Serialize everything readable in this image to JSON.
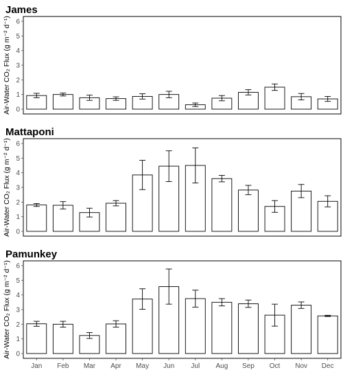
{
  "chart_data": {
    "type": "bar",
    "categories": [
      "Jan",
      "Feb",
      "Mar",
      "Apr",
      "May",
      "Jun",
      "Jul",
      "Aug",
      "Sep",
      "Oct",
      "Nov",
      "Dec"
    ],
    "ylabel": "Air-Water CO₂ Flux (g m⁻² d⁻¹)",
    "ylim": [
      0,
      6
    ],
    "yticks": [
      0,
      1,
      2,
      3,
      4,
      5,
      6
    ],
    "grid": false,
    "panels": [
      {
        "title": "James",
        "values": [
          0.93,
          1.0,
          0.78,
          0.72,
          0.87,
          1.0,
          0.3,
          0.75,
          1.15,
          1.5,
          0.85,
          0.7
        ],
        "errors": [
          0.15,
          0.1,
          0.18,
          0.12,
          0.18,
          0.22,
          0.12,
          0.18,
          0.18,
          0.22,
          0.22,
          0.17
        ]
      },
      {
        "title": "Mattaponi",
        "values": [
          1.8,
          1.78,
          1.28,
          1.92,
          3.85,
          4.45,
          4.5,
          3.6,
          2.82,
          1.7,
          2.75,
          2.05
        ],
        "errors": [
          0.1,
          0.25,
          0.3,
          0.18,
          1.0,
          1.05,
          1.2,
          0.22,
          0.32,
          0.4,
          0.45,
          0.38
        ]
      },
      {
        "title": "Pamunkey",
        "values": [
          2.03,
          2.0,
          1.23,
          2.02,
          3.72,
          4.57,
          3.75,
          3.5,
          3.4,
          2.62,
          3.3,
          2.57
        ],
        "errors": [
          0.17,
          0.2,
          0.2,
          0.22,
          0.7,
          1.2,
          0.58,
          0.25,
          0.25,
          0.75,
          0.22,
          0.04
        ]
      }
    ]
  }
}
